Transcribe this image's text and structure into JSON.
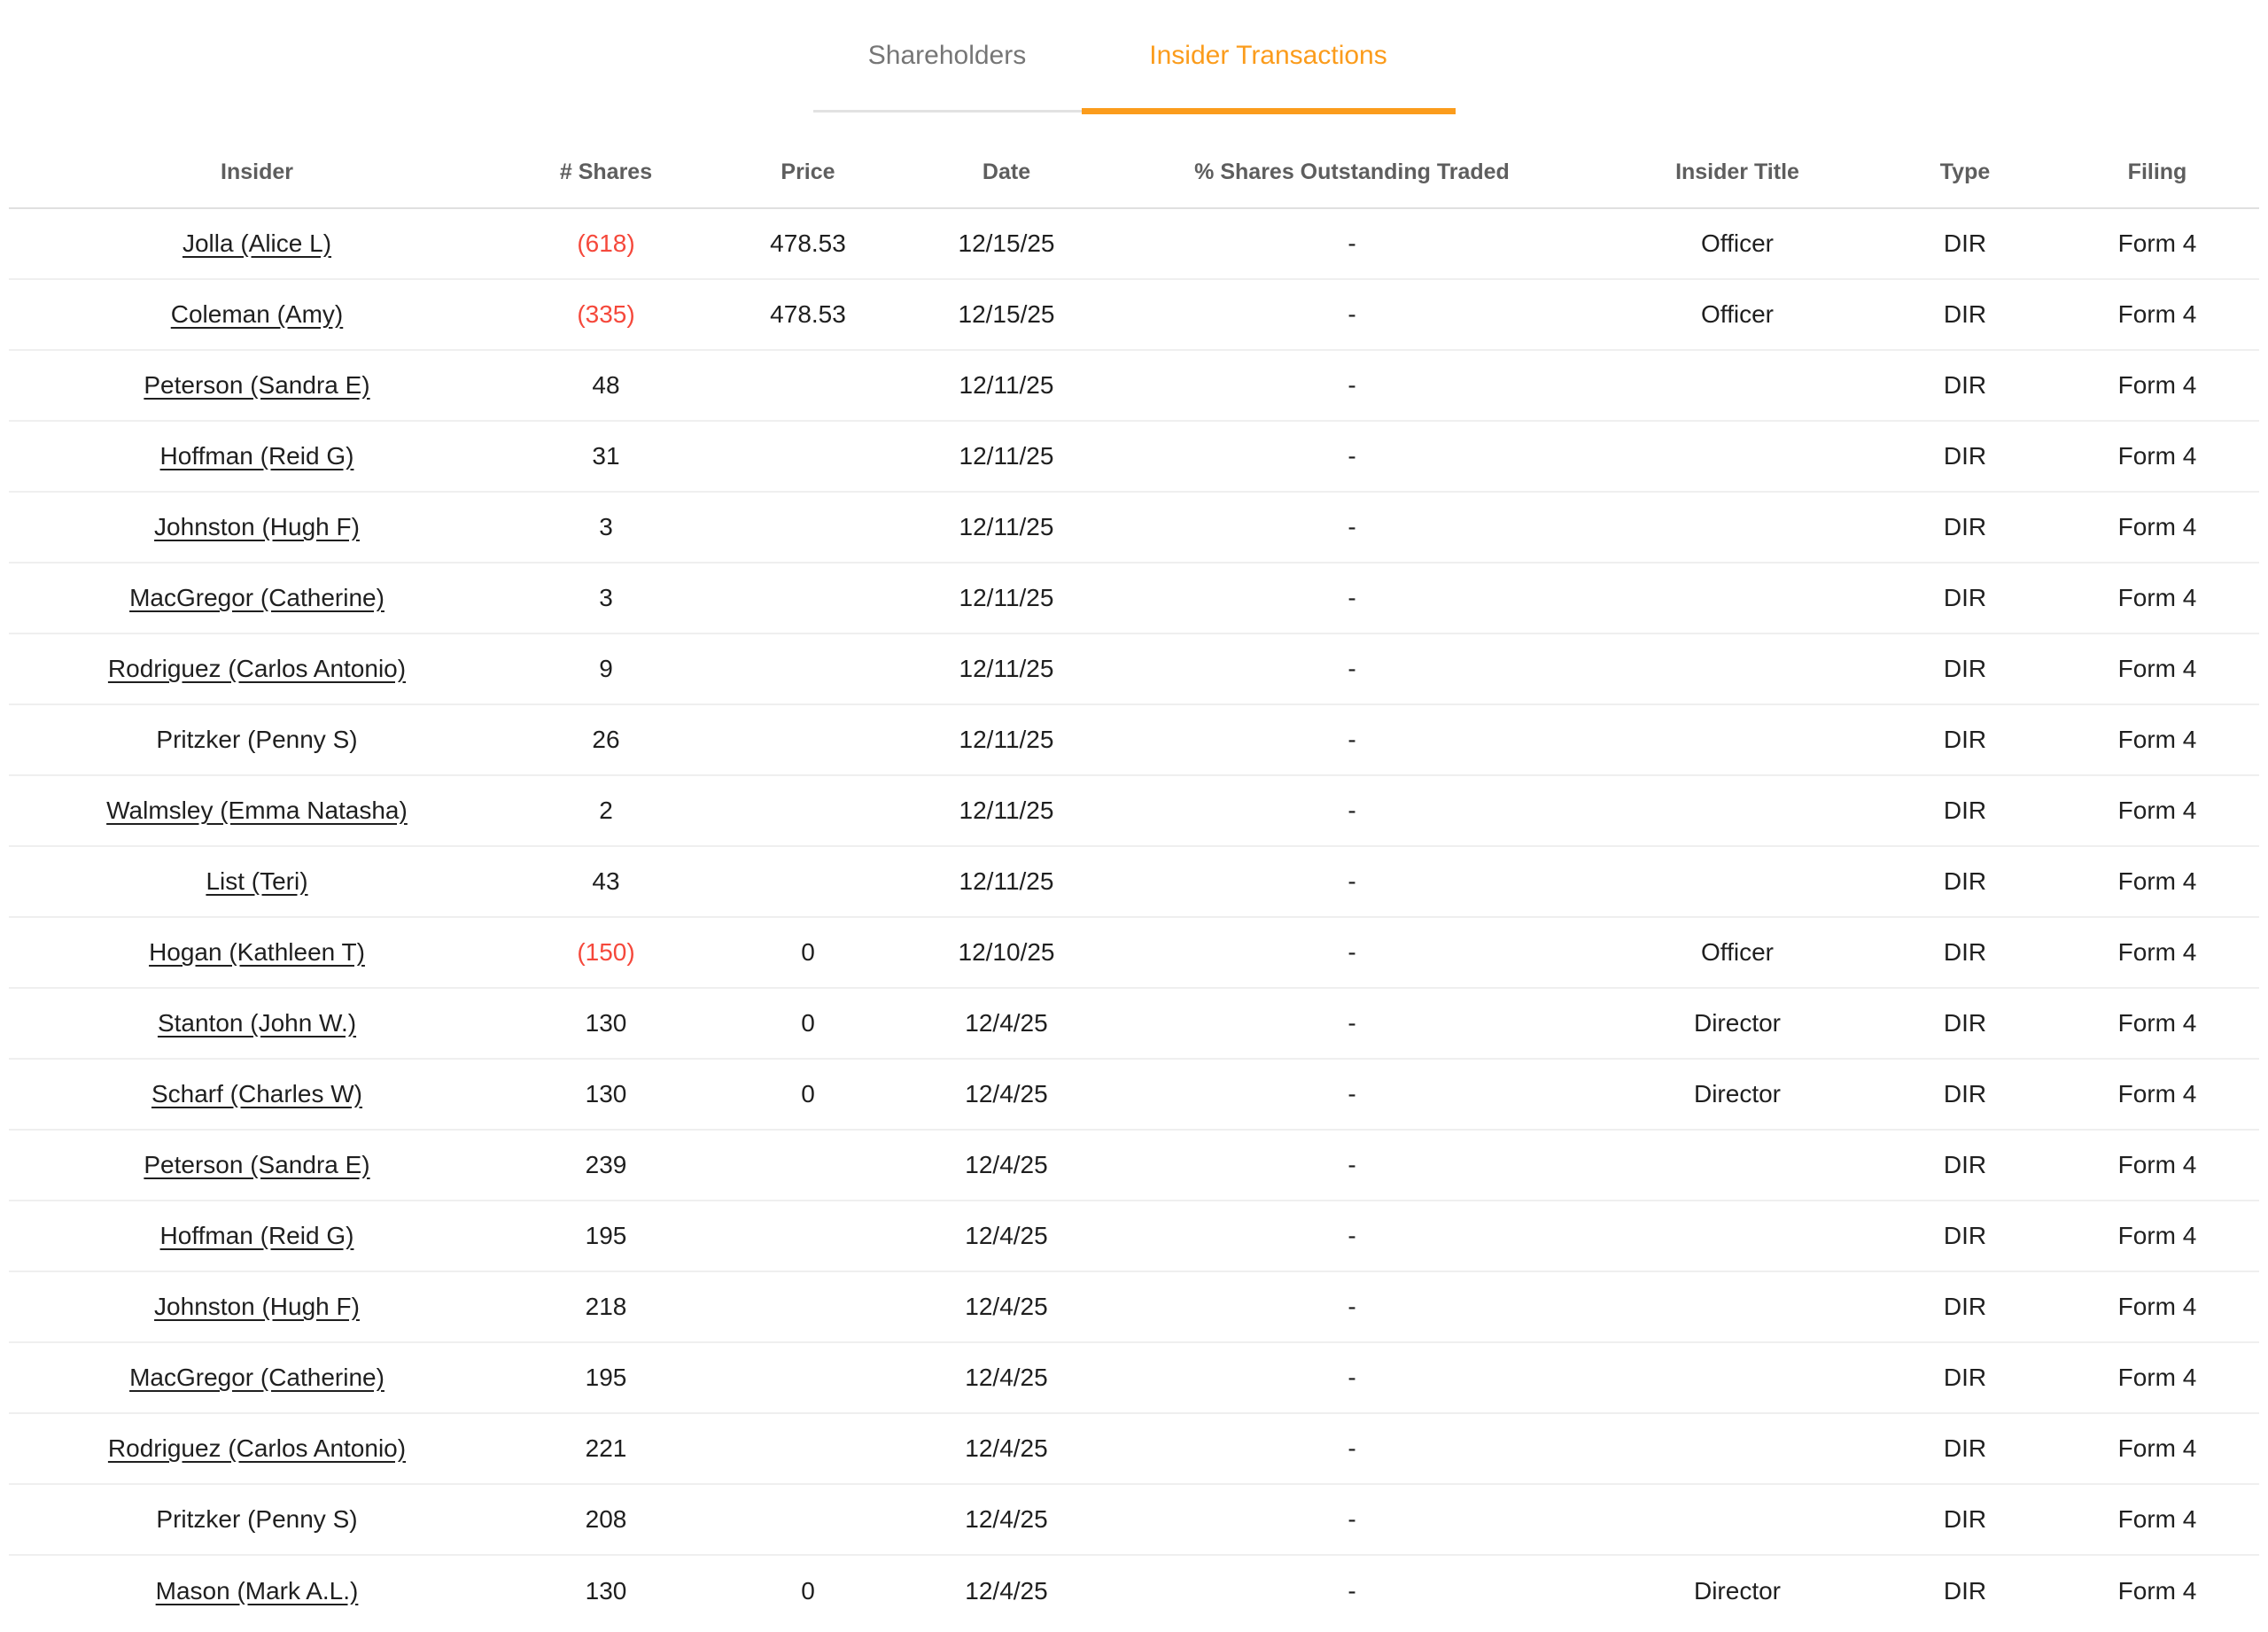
{
  "tabs": {
    "shareholders": {
      "label": "Shareholders",
      "active": false
    },
    "insider_transactions": {
      "label": "Insider Transactions",
      "active": true
    }
  },
  "table": {
    "columns": {
      "insider": "Insider",
      "shares": "# Shares",
      "price": "Price",
      "date": "Date",
      "pct": "% Shares Outstanding Traded",
      "title": "Insider Title",
      "type": "Type",
      "filing": "Filing"
    },
    "rows": [
      {
        "insider": "Jolla (Alice L)",
        "link": true,
        "shares": "(618)",
        "negative": true,
        "price": "478.53",
        "date": "12/15/25",
        "pct": "-",
        "title": "Officer",
        "type": "DIR",
        "filing": "Form 4"
      },
      {
        "insider": "Coleman (Amy)",
        "link": true,
        "shares": "(335)",
        "negative": true,
        "price": "478.53",
        "date": "12/15/25",
        "pct": "-",
        "title": "Officer",
        "type": "DIR",
        "filing": "Form 4"
      },
      {
        "insider": "Peterson (Sandra E)",
        "link": true,
        "shares": "48",
        "negative": false,
        "price": "",
        "date": "12/11/25",
        "pct": "-",
        "title": "",
        "type": "DIR",
        "filing": "Form 4"
      },
      {
        "insider": "Hoffman (Reid G)",
        "link": true,
        "shares": "31",
        "negative": false,
        "price": "",
        "date": "12/11/25",
        "pct": "-",
        "title": "",
        "type": "DIR",
        "filing": "Form 4"
      },
      {
        "insider": "Johnston (Hugh F)",
        "link": true,
        "shares": "3",
        "negative": false,
        "price": "",
        "date": "12/11/25",
        "pct": "-",
        "title": "",
        "type": "DIR",
        "filing": "Form 4"
      },
      {
        "insider": "MacGregor (Catherine)",
        "link": true,
        "shares": "3",
        "negative": false,
        "price": "",
        "date": "12/11/25",
        "pct": "-",
        "title": "",
        "type": "DIR",
        "filing": "Form 4"
      },
      {
        "insider": "Rodriguez (Carlos Antonio)",
        "link": true,
        "shares": "9",
        "negative": false,
        "price": "",
        "date": "12/11/25",
        "pct": "-",
        "title": "",
        "type": "DIR",
        "filing": "Form 4"
      },
      {
        "insider": "Pritzker (Penny S)",
        "link": false,
        "shares": "26",
        "negative": false,
        "price": "",
        "date": "12/11/25",
        "pct": "-",
        "title": "",
        "type": "DIR",
        "filing": "Form 4"
      },
      {
        "insider": "Walmsley (Emma Natasha)",
        "link": true,
        "shares": "2",
        "negative": false,
        "price": "",
        "date": "12/11/25",
        "pct": "-",
        "title": "",
        "type": "DIR",
        "filing": "Form 4"
      },
      {
        "insider": "List (Teri)",
        "link": true,
        "shares": "43",
        "negative": false,
        "price": "",
        "date": "12/11/25",
        "pct": "-",
        "title": "",
        "type": "DIR",
        "filing": "Form 4"
      },
      {
        "insider": "Hogan (Kathleen T)",
        "link": true,
        "shares": "(150)",
        "negative": true,
        "price": "0",
        "date": "12/10/25",
        "pct": "-",
        "title": "Officer",
        "type": "DIR",
        "filing": "Form 4"
      },
      {
        "insider": "Stanton (John W.)",
        "link": true,
        "shares": "130",
        "negative": false,
        "price": "0",
        "date": "12/4/25",
        "pct": "-",
        "title": "Director",
        "type": "DIR",
        "filing": "Form 4"
      },
      {
        "insider": "Scharf (Charles W)",
        "link": true,
        "shares": "130",
        "negative": false,
        "price": "0",
        "date": "12/4/25",
        "pct": "-",
        "title": "Director",
        "type": "DIR",
        "filing": "Form 4"
      },
      {
        "insider": "Peterson (Sandra E)",
        "link": true,
        "shares": "239",
        "negative": false,
        "price": "",
        "date": "12/4/25",
        "pct": "-",
        "title": "",
        "type": "DIR",
        "filing": "Form 4"
      },
      {
        "insider": "Hoffman (Reid G)",
        "link": true,
        "shares": "195",
        "negative": false,
        "price": "",
        "date": "12/4/25",
        "pct": "-",
        "title": "",
        "type": "DIR",
        "filing": "Form 4"
      },
      {
        "insider": "Johnston (Hugh F)",
        "link": true,
        "shares": "218",
        "negative": false,
        "price": "",
        "date": "12/4/25",
        "pct": "-",
        "title": "",
        "type": "DIR",
        "filing": "Form 4"
      },
      {
        "insider": "MacGregor (Catherine)",
        "link": true,
        "shares": "195",
        "negative": false,
        "price": "",
        "date": "12/4/25",
        "pct": "-",
        "title": "",
        "type": "DIR",
        "filing": "Form 4"
      },
      {
        "insider": "Rodriguez (Carlos Antonio)",
        "link": true,
        "shares": "221",
        "negative": false,
        "price": "",
        "date": "12/4/25",
        "pct": "-",
        "title": "",
        "type": "DIR",
        "filing": "Form 4"
      },
      {
        "insider": "Pritzker (Penny S)",
        "link": false,
        "shares": "208",
        "negative": false,
        "price": "",
        "date": "12/4/25",
        "pct": "-",
        "title": "",
        "type": "DIR",
        "filing": "Form 4"
      },
      {
        "insider": "Mason (Mark A.L.)",
        "link": true,
        "shares": "130",
        "negative": false,
        "price": "0",
        "date": "12/4/25",
        "pct": "-",
        "title": "Director",
        "type": "DIR",
        "filing": "Form 4"
      }
    ]
  },
  "colors": {
    "accent": "#fb9c1c",
    "negative": "#f5483b",
    "link_text": "#1f1f1f"
  }
}
